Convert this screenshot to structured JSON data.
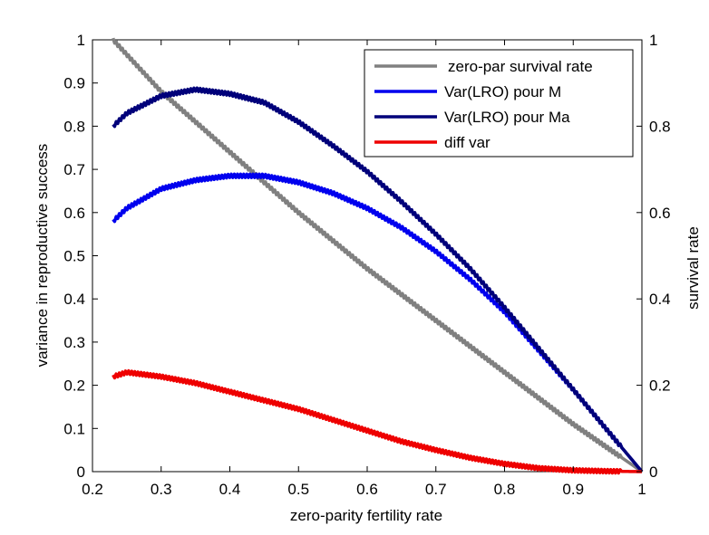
{
  "chart_data": {
    "type": "line",
    "title": "",
    "xlabel": "zero-parity fertility rate",
    "ylabel": "variance in reproductive success",
    "y2label": "survival rate",
    "xlim": [
      0.2,
      1.0
    ],
    "ylim": [
      0,
      1.0
    ],
    "y2lim": [
      0,
      1.0
    ],
    "x_ticks": [
      "0.2",
      "0.3",
      "0.4",
      "0.5",
      "0.6",
      "0.7",
      "0.8",
      "0.9",
      "1"
    ],
    "y_ticks": [
      "0",
      "0.1",
      "0.2",
      "0.3",
      "0.4",
      "0.5",
      "0.6",
      "0.7",
      "0.8",
      "0.9",
      "1"
    ],
    "y2_ticks": [
      "0",
      "0.2",
      "0.4",
      "0.6",
      "0.8",
      "1"
    ],
    "grid": false,
    "legend_position": "top-right",
    "series": [
      {
        "name": "zero-par survival rate",
        "axis": "right",
        "color": "#808080",
        "x": [
          0.23,
          0.3,
          0.4,
          0.5,
          0.6,
          0.7,
          0.8,
          0.9,
          1.0
        ],
        "y": [
          1.0,
          0.88,
          0.74,
          0.6,
          0.47,
          0.35,
          0.23,
          0.11,
          0.0
        ]
      },
      {
        "name": "Var(LRO) pour M",
        "axis": "left",
        "color": "#0000ee",
        "x": [
          0.23,
          0.25,
          0.3,
          0.35,
          0.4,
          0.45,
          0.5,
          0.55,
          0.6,
          0.65,
          0.7,
          0.75,
          0.8,
          0.85,
          0.9,
          0.95,
          1.0
        ],
        "y": [
          0.58,
          0.61,
          0.655,
          0.675,
          0.685,
          0.685,
          0.67,
          0.645,
          0.61,
          0.565,
          0.51,
          0.445,
          0.37,
          0.28,
          0.19,
          0.095,
          0.0
        ]
      },
      {
        "name": "Var(LRO) pour Ma",
        "axis": "left",
        "color": "#00007a",
        "x": [
          0.23,
          0.25,
          0.3,
          0.35,
          0.4,
          0.45,
          0.5,
          0.55,
          0.6,
          0.65,
          0.7,
          0.75,
          0.8,
          0.85,
          0.9,
          0.95,
          1.0
        ],
        "y": [
          0.8,
          0.83,
          0.87,
          0.885,
          0.875,
          0.855,
          0.81,
          0.755,
          0.695,
          0.625,
          0.55,
          0.47,
          0.38,
          0.285,
          0.19,
          0.095,
          0.0
        ]
      },
      {
        "name": "diff var",
        "axis": "left",
        "color": "#ee0000",
        "x": [
          0.23,
          0.25,
          0.3,
          0.35,
          0.4,
          0.45,
          0.5,
          0.55,
          0.6,
          0.65,
          0.7,
          0.75,
          0.8,
          0.85,
          0.9,
          0.95,
          1.0
        ],
        "y": [
          0.22,
          0.23,
          0.22,
          0.205,
          0.185,
          0.165,
          0.145,
          0.12,
          0.095,
          0.07,
          0.05,
          0.032,
          0.018,
          0.008,
          0.003,
          0.001,
          0.0
        ]
      }
    ]
  }
}
